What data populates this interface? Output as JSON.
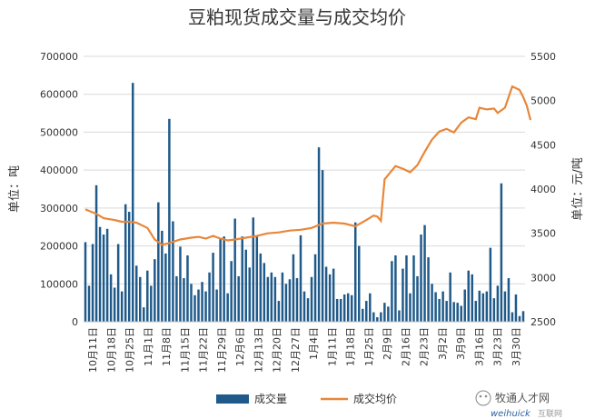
{
  "chart_data": {
    "type": "bar+line",
    "title": "豆粕现货成交量与成交均价",
    "ylabel_left": "单位：吨",
    "ylabel_right": "单位：元/吨",
    "ylim_left": [
      0,
      700000
    ],
    "ylim_right": [
      2500,
      5500
    ],
    "yticks_left": [
      "0",
      "100000",
      "200000",
      "300000",
      "400000",
      "500000",
      "600000",
      "700000"
    ],
    "yticks_right": [
      "2500",
      "3000",
      "3500",
      "4000",
      "4500",
      "5000",
      "5500"
    ],
    "grid": true,
    "legend_position": "bottom",
    "x_tick_labels": [
      "10月11日",
      "10月18日",
      "10月25日",
      "11月1日",
      "11月8日",
      "11月15日",
      "11月22日",
      "11月29日",
      "12月6日",
      "12月13日",
      "12月20日",
      "12月27日",
      "1月4日",
      "1月11日",
      "1月18日",
      "1月25日",
      "2月9日",
      "2月16日",
      "2月23日",
      "3月2日",
      "3月9日",
      "3月16日",
      "3月23日",
      "3月30日"
    ],
    "series": [
      {
        "name": "成交量",
        "type": "bar",
        "color": "#1f5a8a",
        "values": [
          210000,
          95000,
          205000,
          360000,
          250000,
          230000,
          245000,
          125000,
          90000,
          205000,
          80000,
          310000,
          290000,
          630000,
          148000,
          118000,
          38000,
          135000,
          95000,
          165000,
          315000,
          240000,
          180000,
          535000,
          265000,
          120000,
          198000,
          115000,
          175000,
          100000,
          70000,
          85000,
          105000,
          80000,
          130000,
          182000,
          85000,
          220000,
          225000,
          75000,
          160000,
          272000,
          120000,
          225000,
          190000,
          143000,
          275000,
          225000,
          180000,
          155000,
          118000,
          130000,
          118000,
          55000,
          130000,
          100000,
          112000,
          178000,
          115000,
          228000,
          80000,
          62000,
          118000,
          178000,
          460000,
          400000,
          145000,
          125000,
          140000,
          60000,
          60000,
          72000,
          75000,
          70000,
          262000,
          200000,
          34000,
          55000,
          75000,
          25000,
          12000,
          25000,
          50000,
          40000,
          160000,
          175000,
          30000,
          140000,
          175000,
          75000,
          175000,
          120000,
          230000,
          255000,
          170000,
          100000,
          78000,
          60000,
          80000,
          55000,
          130000,
          52000,
          50000,
          42000,
          85000,
          135000,
          125000,
          55000,
          82000,
          75000,
          80000,
          195000,
          62000,
          95000,
          365000,
          80000,
          115000,
          25000,
          72000,
          15000,
          28000
        ],
        "note_values": "approximate daily volumes read from bars"
      },
      {
        "name": "成交均价",
        "type": "line",
        "color": "#e8873a",
        "points": [
          [
            0,
            3770
          ],
          [
            3,
            3720
          ],
          [
            5,
            3670
          ],
          [
            8,
            3650
          ],
          [
            10,
            3630
          ],
          [
            12,
            3630
          ],
          [
            14,
            3620
          ],
          [
            17,
            3560
          ],
          [
            19,
            3430
          ],
          [
            21,
            3370
          ],
          [
            23,
            3390
          ],
          [
            26,
            3430
          ],
          [
            29,
            3450
          ],
          [
            31,
            3460
          ],
          [
            33,
            3440
          ],
          [
            35,
            3470
          ],
          [
            37,
            3440
          ],
          [
            39,
            3420
          ],
          [
            41,
            3430
          ],
          [
            44,
            3450
          ],
          [
            47,
            3470
          ],
          [
            50,
            3500
          ],
          [
            53,
            3510
          ],
          [
            56,
            3530
          ],
          [
            59,
            3540
          ],
          [
            62,
            3560
          ],
          [
            65,
            3610
          ],
          [
            68,
            3620
          ],
          [
            71,
            3610
          ],
          [
            74,
            3580
          ],
          [
            77,
            3650
          ],
          [
            79,
            3700
          ],
          [
            80,
            3690
          ],
          [
            81,
            3640
          ],
          [
            82,
            4110
          ],
          [
            84,
            4210
          ],
          [
            85,
            4260
          ],
          [
            87,
            4230
          ],
          [
            89,
            4190
          ],
          [
            91,
            4270
          ],
          [
            93,
            4420
          ],
          [
            95,
            4560
          ],
          [
            97,
            4650
          ],
          [
            99,
            4680
          ],
          [
            101,
            4640
          ],
          [
            103,
            4750
          ],
          [
            105,
            4810
          ],
          [
            107,
            4790
          ],
          [
            108,
            4920
          ],
          [
            110,
            4900
          ],
          [
            112,
            4910
          ],
          [
            113,
            4860
          ],
          [
            115,
            4920
          ],
          [
            117,
            5160
          ],
          [
            118,
            5140
          ],
          [
            119,
            5120
          ],
          [
            120,
            5040
          ],
          [
            121,
            4940
          ],
          [
            122,
            4780
          ]
        ]
      }
    ]
  },
  "watermark": {
    "wechat_text": "牧通人才网",
    "logo_text": "weihuick",
    "logo_sub": "互联网"
  }
}
